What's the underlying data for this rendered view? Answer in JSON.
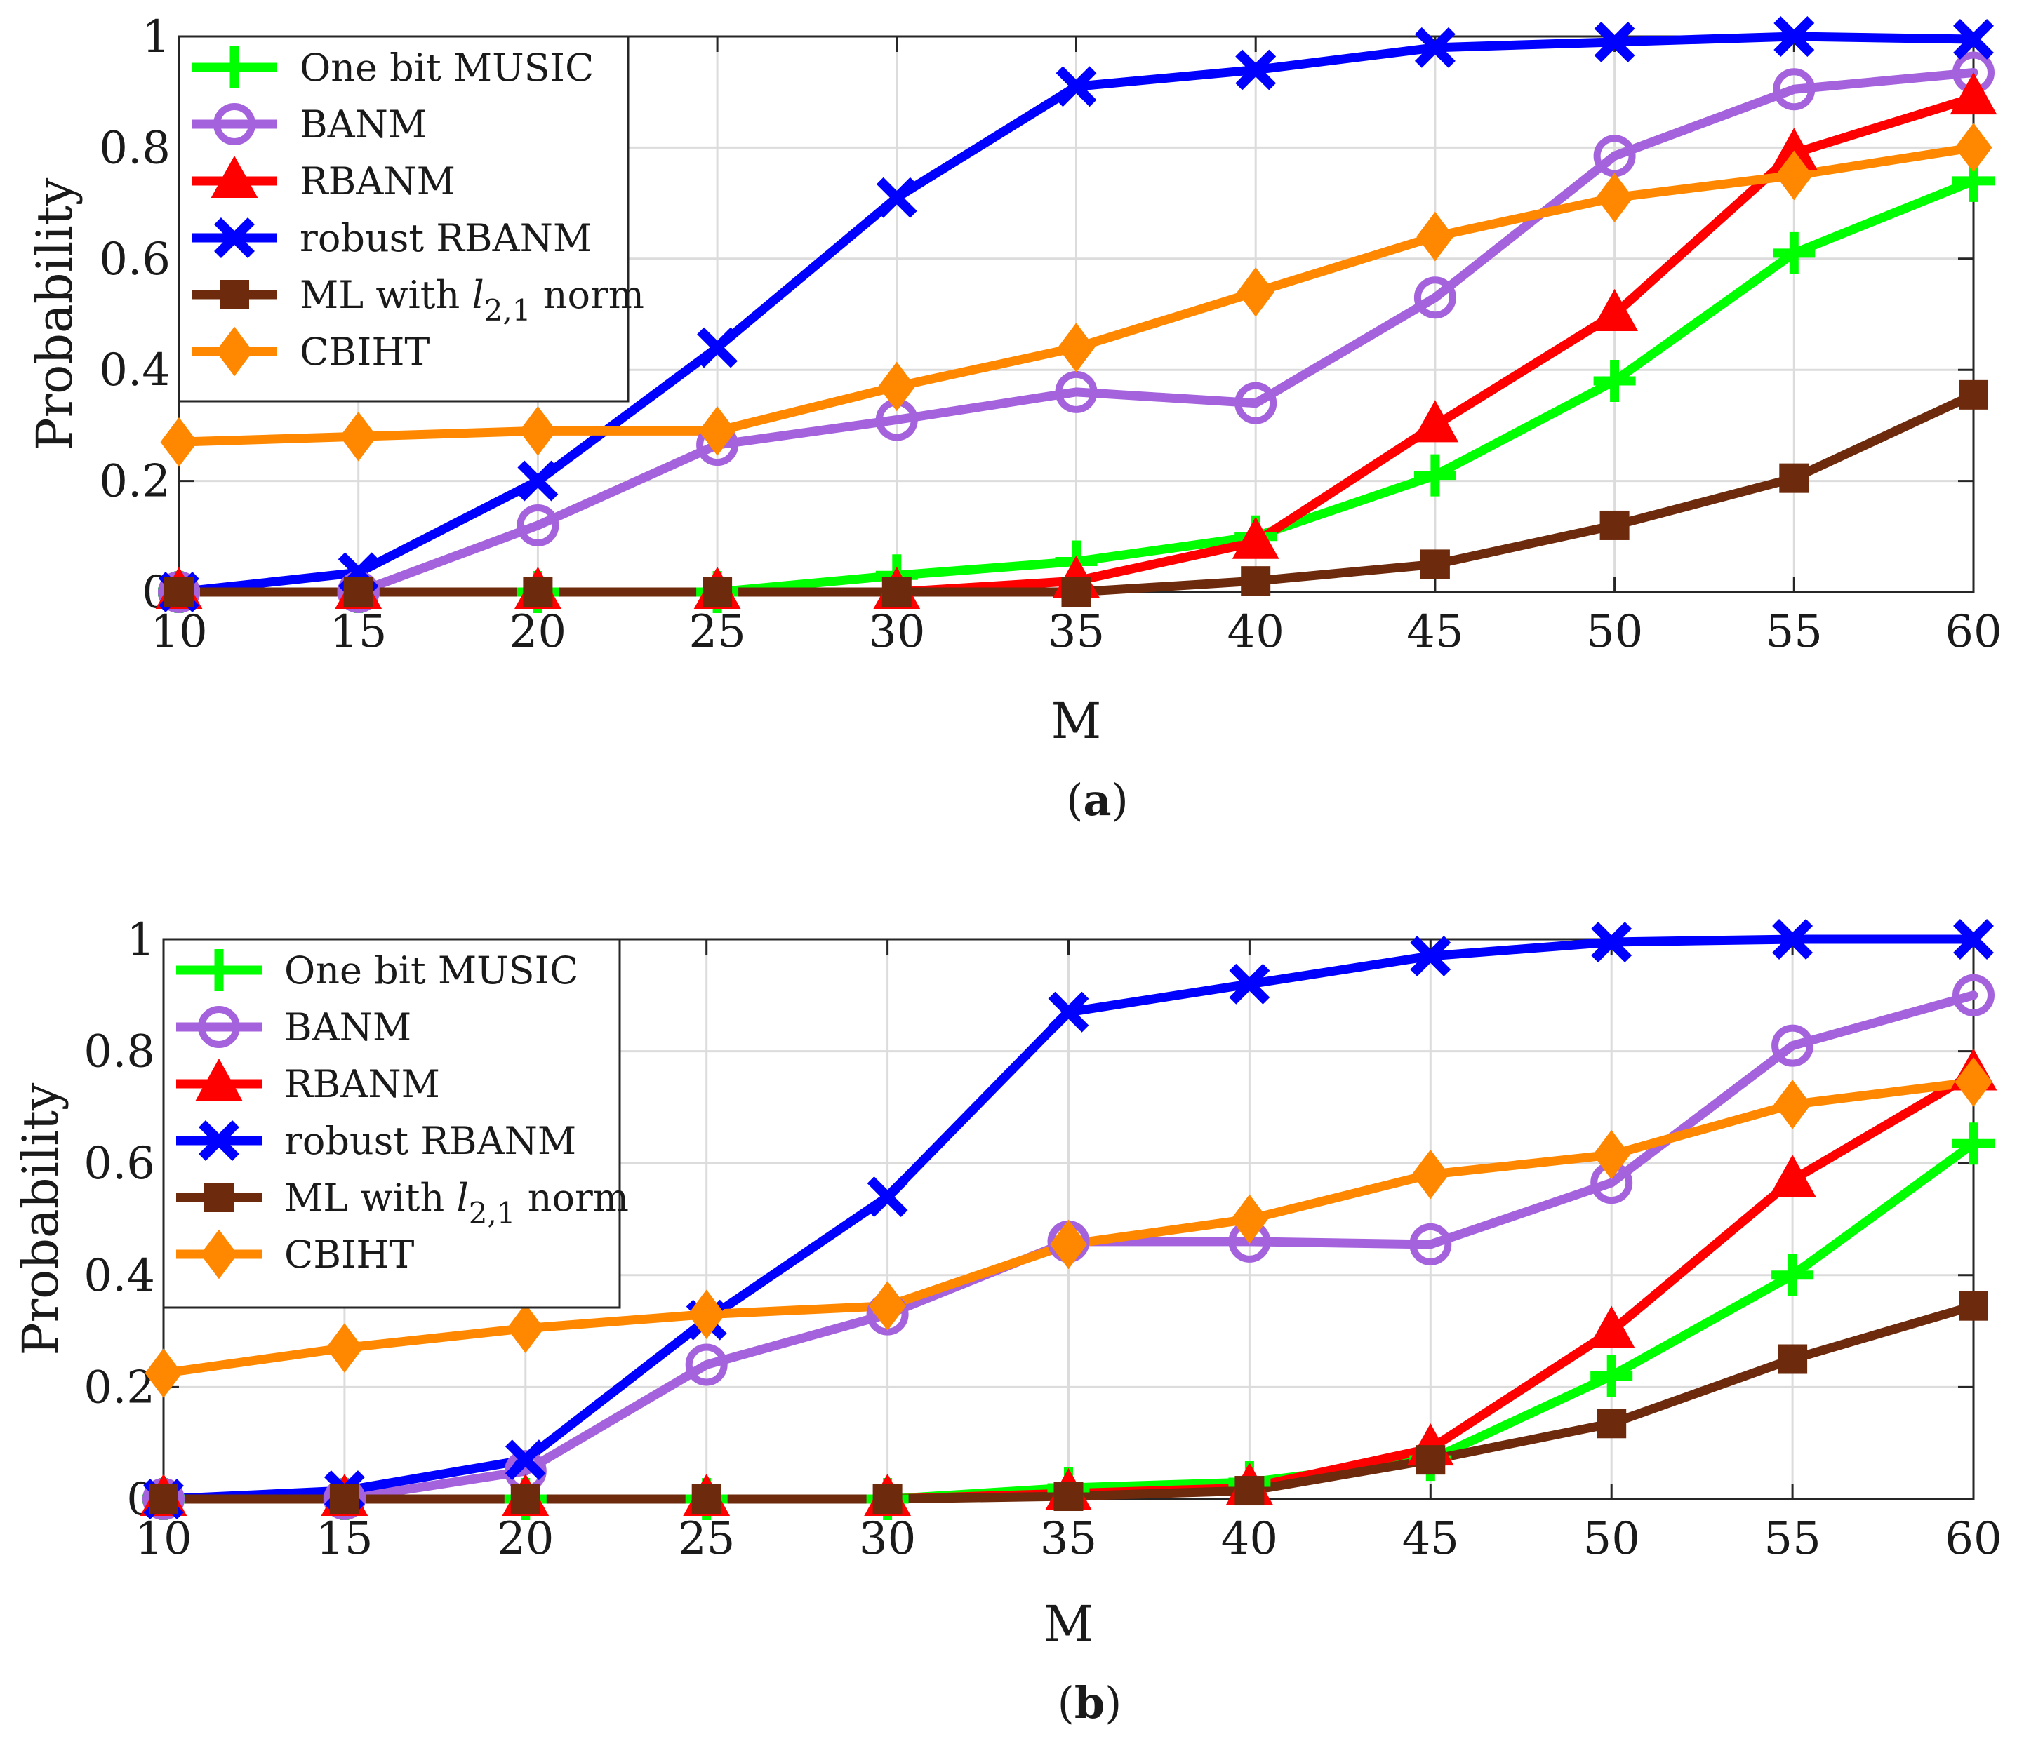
{
  "chart_data": [
    {
      "type": "line",
      "caption_letter": "a",
      "caption_open": "(",
      "caption_close": ")",
      "title": "",
      "xlabel": "M",
      "ylabel": "Probability",
      "x": [
        10,
        15,
        20,
        25,
        30,
        35,
        40,
        45,
        50,
        55,
        60
      ],
      "xlim": [
        10,
        60
      ],
      "ylim": [
        0,
        1
      ],
      "xticks": [
        10,
        15,
        20,
        25,
        30,
        35,
        40,
        45,
        50,
        55,
        60
      ],
      "yticks": [
        0,
        0.2,
        0.4,
        0.6,
        0.8,
        1
      ],
      "ytick_labels": [
        "0",
        "0.2",
        "0.4",
        "0.6",
        "0.8",
        "1"
      ],
      "grid": true,
      "legend_position": "top-left",
      "series": [
        {
          "name": "One bit MUSIC",
          "color": "#00ff00",
          "marker": "plus",
          "values": [
            0,
            0,
            0,
            0,
            0.03,
            0.055,
            0.1,
            0.21,
            0.38,
            0.61,
            0.74
          ]
        },
        {
          "name": "BANM",
          "color": "#a463dc",
          "marker": "circle",
          "values": [
            0,
            0,
            0.12,
            0.265,
            0.31,
            0.36,
            0.34,
            0.53,
            0.785,
            0.905,
            0.935
          ]
        },
        {
          "name": "RBANM",
          "color": "#ff0000",
          "marker": "triangle",
          "values": [
            0,
            0,
            0,
            0,
            0,
            0.02,
            0.09,
            0.3,
            0.5,
            0.79,
            0.89
          ]
        },
        {
          "name": "robust RBANM",
          "color": "#0000ff",
          "marker": "x",
          "values": [
            0,
            0.035,
            0.2,
            0.44,
            0.71,
            0.91,
            0.94,
            0.98,
            0.99,
            1.0,
            0.995
          ]
        },
        {
          "name": "ML with l2,1 norm",
          "color": "#6e2a0c",
          "marker": "square",
          "label_parts": {
            "pre": "ML with ",
            "var": "l",
            "sub": "2,1",
            "post": " norm"
          },
          "values": [
            0,
            0,
            0,
            0,
            0,
            0,
            0.02,
            0.05,
            0.12,
            0.205,
            0.355
          ]
        },
        {
          "name": "CBIHT",
          "color": "#ff8800",
          "marker": "diamond",
          "values": [
            0.27,
            0.28,
            0.29,
            0.29,
            0.37,
            0.44,
            0.54,
            0.64,
            0.71,
            0.75,
            0.8
          ]
        }
      ]
    },
    {
      "type": "line",
      "caption_letter": "b",
      "caption_open": "(",
      "caption_close": ")",
      "title": "",
      "xlabel": "M",
      "ylabel": "Probability",
      "x": [
        10,
        15,
        20,
        25,
        30,
        35,
        40,
        45,
        50,
        55,
        60
      ],
      "xlim": [
        10,
        60
      ],
      "ylim": [
        0,
        1
      ],
      "xticks": [
        10,
        15,
        20,
        25,
        30,
        35,
        40,
        45,
        50,
        55,
        60
      ],
      "yticks": [
        0,
        0.2,
        0.4,
        0.6,
        0.8,
        1
      ],
      "ytick_labels": [
        "0",
        "0.2",
        "0.4",
        "0.6",
        "0.8",
        "1"
      ],
      "grid": true,
      "legend_position": "top-left",
      "series": [
        {
          "name": "One bit MUSIC",
          "color": "#00ff00",
          "marker": "plus",
          "values": [
            0,
            0,
            0,
            0,
            0,
            0.02,
            0.03,
            0.07,
            0.22,
            0.4,
            0.635
          ]
        },
        {
          "name": "BANM",
          "color": "#a463dc",
          "marker": "circle",
          "values": [
            0,
            0,
            0.05,
            0.24,
            0.33,
            0.46,
            0.46,
            0.455,
            0.565,
            0.81,
            0.9
          ]
        },
        {
          "name": "RBANM",
          "color": "#ff0000",
          "marker": "triangle",
          "values": [
            0,
            0,
            0,
            0,
            0,
            0.01,
            0.02,
            0.09,
            0.3,
            0.57,
            0.76
          ]
        },
        {
          "name": "robust RBANM",
          "color": "#0000ff",
          "marker": "x",
          "values": [
            0,
            0.015,
            0.07,
            0.32,
            0.54,
            0.87,
            0.92,
            0.97,
            0.995,
            1.0,
            1.0
          ]
        },
        {
          "name": "ML with l2,1 norm",
          "color": "#6e2a0c",
          "marker": "square",
          "label_parts": {
            "pre": "ML with ",
            "var": "l",
            "sub": "2,1",
            "post": " norm"
          },
          "values": [
            0,
            0,
            0,
            0,
            0,
            0.005,
            0.015,
            0.07,
            0.135,
            0.25,
            0.345
          ]
        },
        {
          "name": "CBIHT",
          "color": "#ff8800",
          "marker": "diamond",
          "values": [
            0.225,
            0.27,
            0.305,
            0.33,
            0.345,
            0.455,
            0.5,
            0.58,
            0.615,
            0.705,
            0.745
          ]
        }
      ]
    }
  ]
}
